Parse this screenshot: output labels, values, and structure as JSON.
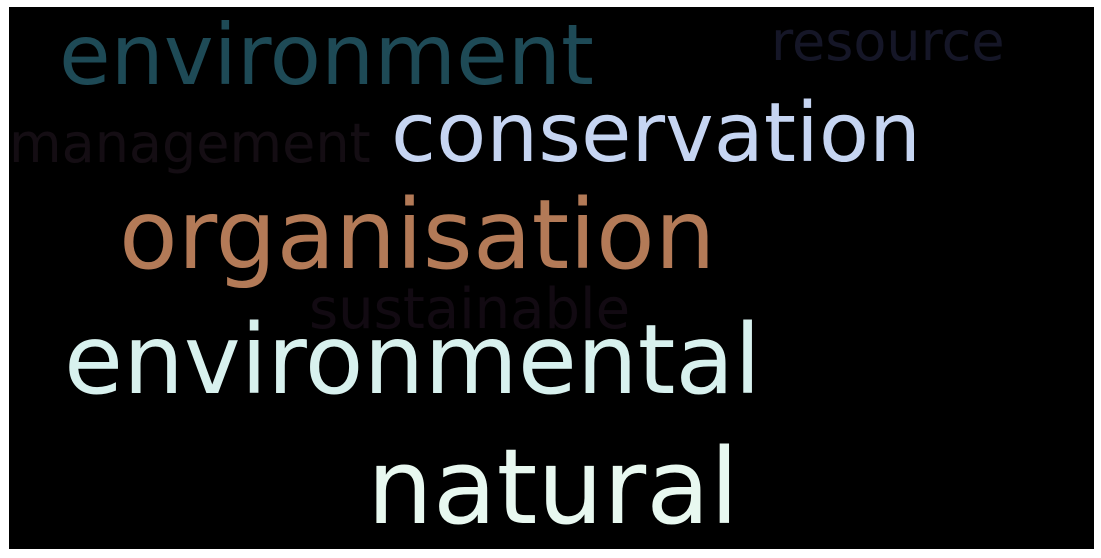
{
  "words": [
    {
      "text": "environment",
      "color": "#1e4a56"
    },
    {
      "text": "resource",
      "color": "#151627"
    },
    {
      "text": "management",
      "color": "#140d13"
    },
    {
      "text": "conservation",
      "color": "#c6d5f2"
    },
    {
      "text": "organisation",
      "color": "#b37a57"
    },
    {
      "text": "sustainable",
      "color": "#120a12"
    },
    {
      "text": "environmental",
      "color": "#d8f1ee"
    },
    {
      "text": "natural",
      "color": "#e8f8f0"
    }
  ]
}
